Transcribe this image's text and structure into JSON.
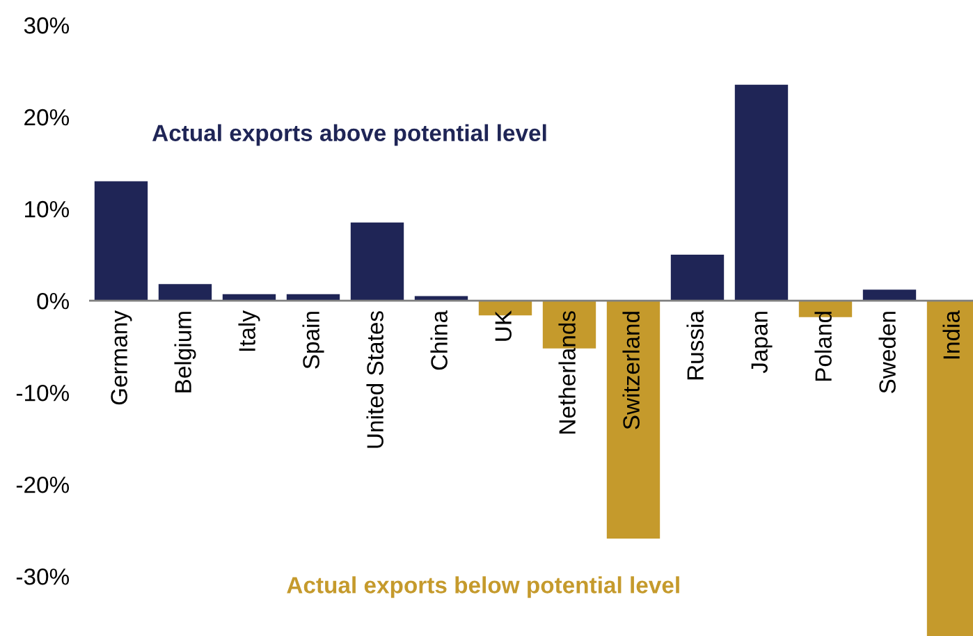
{
  "chart_data": {
    "type": "bar",
    "categories": [
      "Germany",
      "Belgium",
      "Italy",
      "Spain",
      "United States",
      "China",
      "UK",
      "Netherlands",
      "Switzerland",
      "Russia",
      "Japan",
      "Poland",
      "Sweden",
      "India"
    ],
    "values": [
      13.0,
      1.8,
      0.7,
      0.7,
      8.5,
      0.5,
      -1.6,
      -5.2,
      -25.9,
      5.0,
      23.5,
      -1.8,
      1.2,
      -36.5
    ],
    "colors": [
      "#1f2556",
      "#1f2556",
      "#1f2556",
      "#1f2556",
      "#1f2556",
      "#1f2556",
      "#c59a2c",
      "#c59a2c",
      "#c59a2c",
      "#1f2556",
      "#1f2556",
      "#c59a2c",
      "#1f2556",
      "#c59a2c"
    ],
    "ylim": [
      -36.5,
      30
    ],
    "yticks": [
      {
        "value": -30,
        "label": "-30%"
      },
      {
        "value": -20,
        "label": "-20%"
      },
      {
        "value": -10,
        "label": "-10%"
      },
      {
        "value": 0,
        "label": "0%"
      },
      {
        "value": 10,
        "label": "10%"
      },
      {
        "value": 20,
        "label": "20%"
      },
      {
        "value": 30,
        "label": "30%"
      }
    ],
    "annotations": [
      "Actual exports above potential level",
      "Actual exports below potential level"
    ],
    "grid": false,
    "legend": false
  }
}
